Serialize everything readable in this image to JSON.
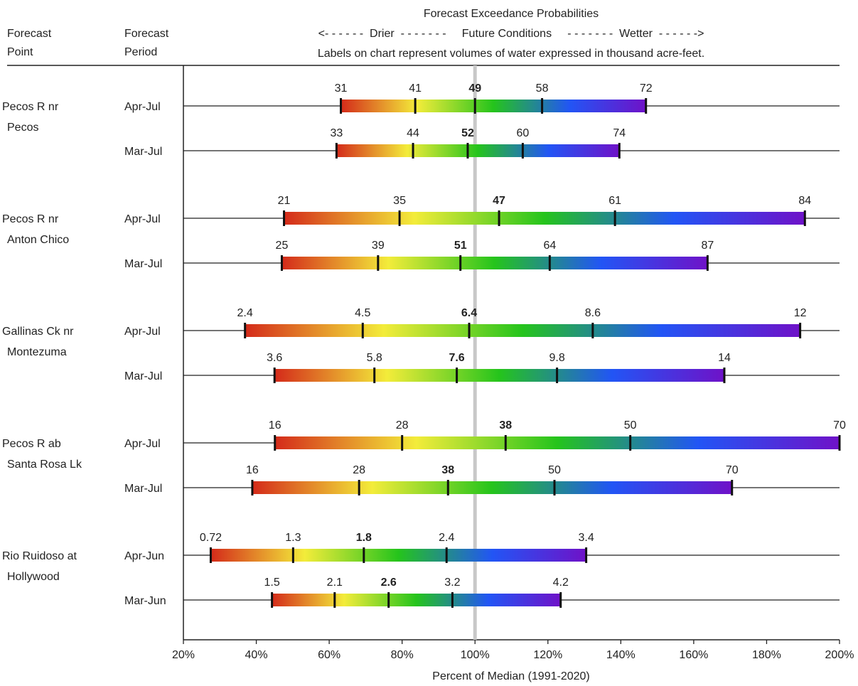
{
  "header": {
    "forecast_point_line1": "Forecast",
    "forecast_point_line2": "Point",
    "forecast_period_line1": "Forecast",
    "forecast_period_line2": "Period",
    "title": "Forecast Exceedance Probabilities",
    "subtitle": "<- - - - - -  Drier  - - - - - - -     Future Conditions     - - - - - - -  Wetter  - - - - - ->",
    "note": "Labels on chart represent volumes of water expressed in thousand acre-feet."
  },
  "chart_data": {
    "type": "range_bar",
    "xlabel": "Percent of Median (1991-2020)",
    "xlim": [
      20,
      200
    ],
    "xticks": [
      20,
      40,
      60,
      80,
      100,
      120,
      140,
      160,
      180,
      200
    ],
    "xtick_labels": [
      "20%",
      "40%",
      "60%",
      "80%",
      "100%",
      "120%",
      "140%",
      "160%",
      "180%",
      "200%"
    ],
    "reference_line": 100,
    "gradient_colors": [
      "#d42a1a",
      "#f3ec3a",
      "#25c41c",
      "#2255f5",
      "#6f12c8"
    ],
    "median_line_color": "#c8c8c8",
    "points": [
      {
        "name_line1": "Pecos R nr",
        "name_line2": "Pecos",
        "periods": [
          {
            "period": "Apr-Jul",
            "pct": [
              63.2,
              83.6,
              100,
              118.4,
              146.9
            ],
            "labels": [
              "31",
              "41",
              "49",
              "58",
              "72"
            ]
          },
          {
            "period": "Mar-Jul",
            "pct": [
              62.0,
              83.0,
              98.0,
              113.1,
              139.6
            ],
            "labels": [
              "33",
              "44",
              "52",
              "60",
              "74"
            ]
          }
        ]
      },
      {
        "name_line1": "Pecos R nr",
        "name_line2": "Anton Chico",
        "periods": [
          {
            "period": "Apr-Jul",
            "pct": [
              47.6,
              79.3,
              106.6,
              138.4,
              190.5
            ],
            "labels": [
              "21",
              "35",
              "47",
              "61",
              "84"
            ]
          },
          {
            "period": "Mar-Jul",
            "pct": [
              47.0,
              73.4,
              96.0,
              120.5,
              163.8
            ],
            "labels": [
              "25",
              "39",
              "51",
              "64",
              "87"
            ]
          }
        ]
      },
      {
        "name_line1": "Gallinas Ck nr",
        "name_line2": "Montezuma",
        "periods": [
          {
            "period": "Apr-Jul",
            "pct": [
              36.9,
              69.2,
              98.4,
              132.3,
              189.2
            ],
            "labels": [
              "2.4",
              "4.5",
              "6.4",
              "8.6",
              "12"
            ]
          },
          {
            "period": "Mar-Jul",
            "pct": [
              45.0,
              72.4,
              95.0,
              122.5,
              168.4
            ],
            "labels": [
              "3.6",
              "5.8",
              "7.6",
              "9.8",
              "14"
            ]
          }
        ]
      },
      {
        "name_line1": "Pecos R ab",
        "name_line2": "Santa Rosa Lk",
        "periods": [
          {
            "period": "Apr-Jul",
            "pct": [
              45.1,
              80.0,
              108.4,
              142.6,
              200.0
            ],
            "labels": [
              "16",
              "28",
              "38",
              "50",
              "70"
            ]
          },
          {
            "period": "Mar-Jul",
            "pct": [
              38.9,
              68.2,
              92.6,
              121.8,
              170.5
            ],
            "labels": [
              "16",
              "28",
              "38",
              "50",
              "70"
            ]
          }
        ]
      },
      {
        "name_line1": "Rio Ruidoso at",
        "name_line2": "Hollywood",
        "periods": [
          {
            "period": "Apr-Jun",
            "pct": [
              27.5,
              50.1,
              69.5,
              92.2,
              130.5
            ],
            "labels": [
              "0.72",
              "1.3",
              "1.8",
              "2.4",
              "3.4"
            ]
          },
          {
            "period": "Mar-Jun",
            "pct": [
              44.3,
              61.5,
              76.3,
              93.8,
              123.5
            ],
            "labels": [
              "1.5",
              "2.1",
              "2.6",
              "3.2",
              "4.2"
            ]
          }
        ]
      }
    ]
  }
}
